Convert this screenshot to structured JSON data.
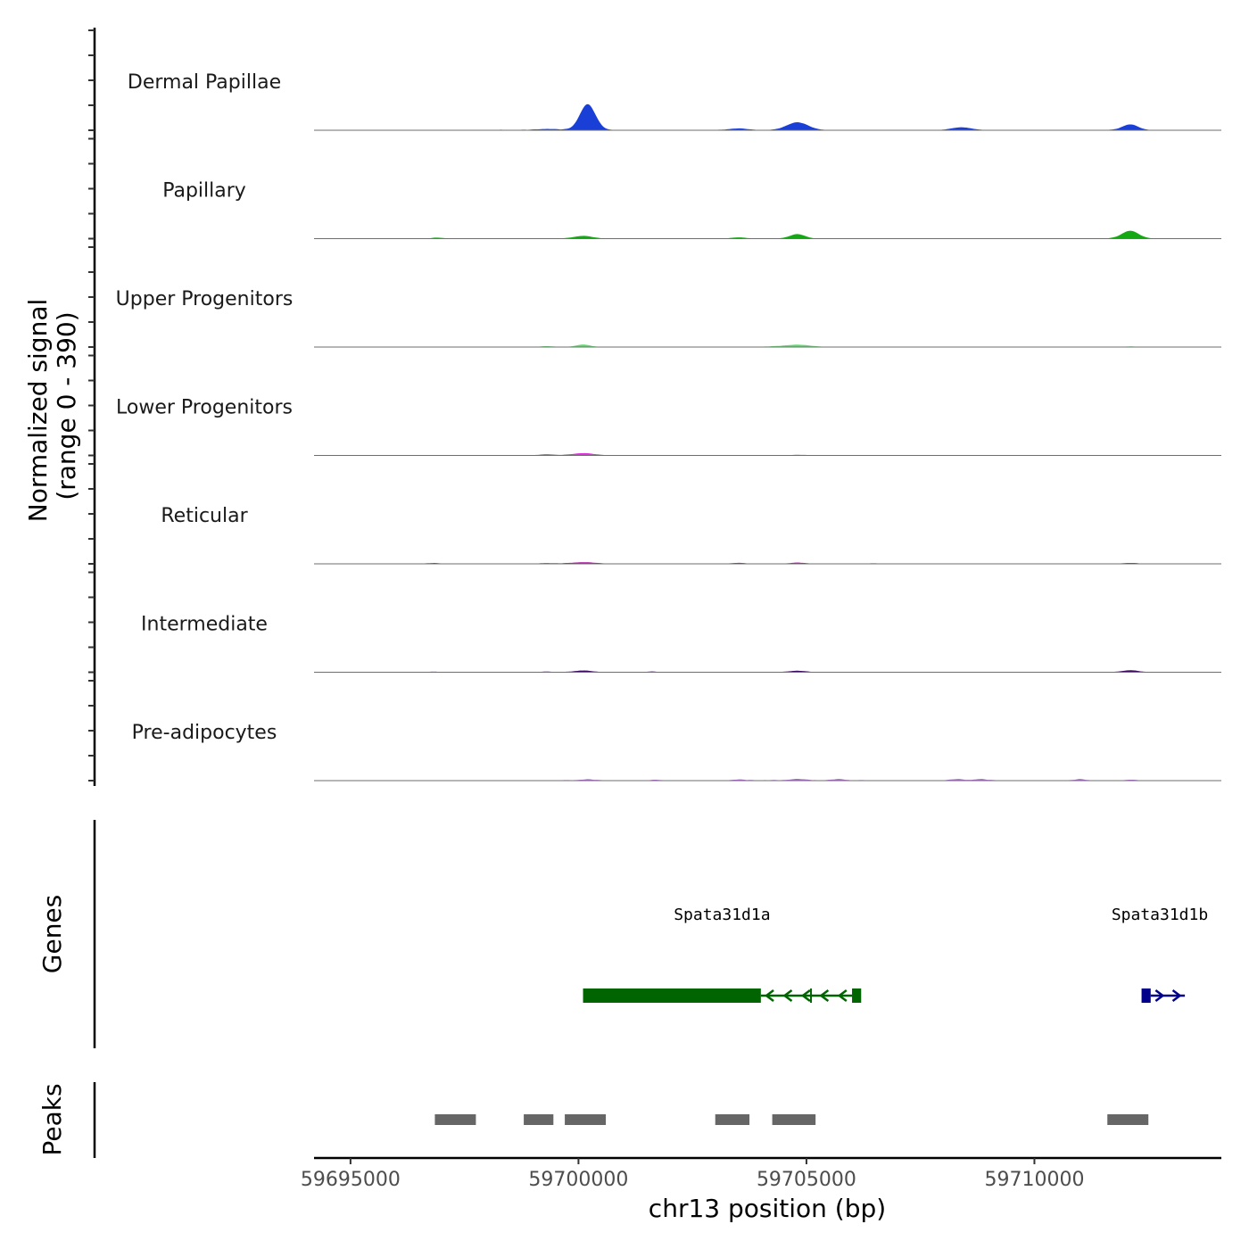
{
  "chart_data": {
    "type": "area",
    "chromosome": "chr13",
    "xlabel": "chr13 position (bp)",
    "ylabel_line1": "Normalized signal",
    "ylabel_line2": "(range 0 - 390)",
    "ylim": [
      0,
      390
    ],
    "xlim": [
      59694200,
      59714100
    ],
    "x_ticks": [
      59695000,
      59700000,
      59705000,
      59710000
    ],
    "x_tick_labels": [
      "59695000",
      "59700000",
      "59705000",
      "59710000"
    ],
    "tracks": [
      {
        "name": "Dermal Papillae",
        "color": "#1a3fd6",
        "baseline": [
          [
            59694800,
            0.4
          ],
          [
            59695200,
            1.2
          ],
          [
            59695800,
            1.0
          ],
          [
            59696400,
            1.3
          ],
          [
            59697100,
            1.1
          ],
          [
            59697600,
            0.8
          ],
          [
            59698600,
            2.5
          ],
          [
            59699200,
            1.6
          ],
          [
            59699700,
            3.0
          ],
          [
            59700000,
            1.8
          ],
          [
            59700500,
            2.2
          ],
          [
            59701100,
            0.7
          ],
          [
            59702000,
            0.6
          ],
          [
            59703300,
            1.6
          ],
          [
            59704100,
            1.3
          ],
          [
            59705600,
            1.4
          ],
          [
            59706400,
            1.0
          ],
          [
            59707400,
            0.9
          ],
          [
            59708600,
            0.6
          ],
          [
            59709600,
            1.0
          ],
          [
            59710600,
            1.4
          ],
          [
            59711500,
            1.8
          ],
          [
            59712400,
            1.1
          ],
          [
            59713300,
            0.5
          ]
        ],
        "peaks": [
          [
            59700200,
            100,
            170
          ],
          [
            59704800,
            30,
            230
          ],
          [
            59708400,
            11,
            220
          ],
          [
            59712100,
            22,
            170
          ],
          [
            59703500,
            6,
            200
          ],
          [
            59699300,
            4,
            200
          ]
        ]
      },
      {
        "name": "Papillary",
        "color": "#14a814",
        "baseline": [
          [
            59694800,
            0.2
          ],
          [
            59695800,
            0.6
          ],
          [
            59696800,
            1.2
          ],
          [
            59697600,
            0.6
          ],
          [
            59698600,
            1.0
          ],
          [
            59699600,
            1.4
          ],
          [
            59701000,
            0.8
          ],
          [
            59702000,
            0.6
          ],
          [
            59703000,
            0.8
          ],
          [
            59704000,
            1.4
          ],
          [
            59705600,
            0.6
          ],
          [
            59706600,
            0.6
          ],
          [
            59707800,
            0.8
          ],
          [
            59708600,
            0.6
          ],
          [
            59709600,
            0.7
          ],
          [
            59710600,
            0.6
          ],
          [
            59711600,
            1.5
          ],
          [
            59712600,
            1.0
          ],
          [
            59713300,
            0.4
          ]
        ],
        "peaks": [
          [
            59700100,
            10,
            190
          ],
          [
            59704800,
            17,
            160
          ],
          [
            59712100,
            30,
            180
          ],
          [
            59703500,
            4,
            150
          ],
          [
            59696900,
            3,
            120
          ]
        ]
      },
      {
        "name": "Upper Progenitors",
        "color": "#5ddc6c",
        "baseline": [
          [
            59694800,
            0.1
          ],
          [
            59698700,
            0.8
          ],
          [
            59699400,
            1.2
          ],
          [
            59700000,
            1.0
          ],
          [
            59701000,
            0.4
          ],
          [
            59703500,
            0.8
          ],
          [
            59704200,
            2.5
          ],
          [
            59705200,
            1.0
          ],
          [
            59706200,
            0.5
          ],
          [
            59708400,
            0.4
          ],
          [
            59710500,
            0.4
          ],
          [
            59711500,
            0.8
          ],
          [
            59712600,
            0.5
          ],
          [
            59713300,
            0.1
          ]
        ],
        "peaks": [
          [
            59700100,
            9,
            150
          ],
          [
            59704800,
            8,
            280
          ],
          [
            59699300,
            3,
            120
          ],
          [
            59712100,
            2,
            120
          ]
        ]
      },
      {
        "name": "Lower Progenitors",
        "color": "#e22fe0",
        "baseline": [
          [
            59694800,
            0.1
          ],
          [
            59695800,
            0.6
          ],
          [
            59696800,
            1.0
          ],
          [
            59697800,
            0.8
          ],
          [
            59698700,
            1.2
          ],
          [
            59699700,
            1.6
          ],
          [
            59700800,
            1.2
          ],
          [
            59701800,
            1.4
          ],
          [
            59702800,
            1.0
          ],
          [
            59703800,
            1.1
          ],
          [
            59704800,
            1.4
          ],
          [
            59705800,
            1.0
          ],
          [
            59706800,
            0.8
          ],
          [
            59707800,
            0.8
          ],
          [
            59708800,
            0.9
          ],
          [
            59709800,
            0.7
          ],
          [
            59710800,
            0.9
          ],
          [
            59711800,
            1.0
          ],
          [
            59712800,
            0.6
          ],
          [
            59713300,
            0.1
          ]
        ],
        "peaks": [
          [
            59700100,
            8,
            230
          ],
          [
            59699300,
            4,
            130
          ],
          [
            59704800,
            1.5,
            150
          ],
          [
            59706500,
            1,
            150
          ]
        ]
      },
      {
        "name": "Reticular",
        "color": "#a8149e",
        "baseline": [
          [
            59694800,
            0.1
          ],
          [
            59695800,
            0.9
          ],
          [
            59696700,
            1.6
          ],
          [
            59697500,
            1.0
          ],
          [
            59698700,
            1.3
          ],
          [
            59699700,
            1.8
          ],
          [
            59700800,
            1.6
          ],
          [
            59701800,
            1.0
          ],
          [
            59702800,
            0.9
          ],
          [
            59703800,
            1.0
          ],
          [
            59704800,
            1.2
          ],
          [
            59705800,
            1.0
          ],
          [
            59706800,
            0.8
          ],
          [
            59707800,
            1.0
          ],
          [
            59708800,
            0.8
          ],
          [
            59709800,
            1.0
          ],
          [
            59710800,
            1.0
          ],
          [
            59711800,
            1.2
          ],
          [
            59712800,
            0.8
          ],
          [
            59713300,
            0.2
          ]
        ],
        "peaks": [
          [
            59700100,
            5,
            250
          ],
          [
            59703500,
            3,
            150
          ],
          [
            59704800,
            4,
            150
          ],
          [
            59712100,
            3,
            150
          ],
          [
            59696800,
            2,
            150
          ],
          [
            59699300,
            2,
            150
          ],
          [
            59706500,
            1.5,
            150
          ]
        ]
      },
      {
        "name": "Intermediate",
        "color": "#3a0b5e",
        "baseline": [
          [
            59694800,
            0.1
          ],
          [
            59695800,
            0.7
          ],
          [
            59696800,
            1.0
          ],
          [
            59697800,
            0.8
          ],
          [
            59698800,
            1.0
          ],
          [
            59699800,
            1.3
          ],
          [
            59700800,
            1.0
          ],
          [
            59701800,
            1.0
          ],
          [
            59702800,
            0.8
          ],
          [
            59703800,
            0.9
          ],
          [
            59704800,
            1.1
          ],
          [
            59705800,
            0.8
          ],
          [
            59706800,
            0.8
          ],
          [
            59707800,
            0.8
          ],
          [
            59708800,
            0.7
          ],
          [
            59709800,
            0.8
          ],
          [
            59710800,
            0.9
          ],
          [
            59711800,
            1.2
          ],
          [
            59712800,
            0.8
          ],
          [
            59713300,
            0.1
          ]
        ],
        "peaks": [
          [
            59700100,
            6,
            180
          ],
          [
            59704800,
            5,
            180
          ],
          [
            59712100,
            7,
            170
          ],
          [
            59701600,
            2,
            100
          ],
          [
            59699300,
            2,
            100
          ],
          [
            59696800,
            1.5,
            120
          ]
        ]
      },
      {
        "name": "Pre-adipocytes",
        "color": "#b85ee8",
        "baseline": [
          [
            59694800,
            0.2
          ],
          [
            59695100,
            1.6
          ],
          [
            59695800,
            1.8
          ],
          [
            59696400,
            1.2
          ],
          [
            59696800,
            1.8
          ],
          [
            59697800,
            0.6
          ],
          [
            59698700,
            1.4
          ],
          [
            59699300,
            1.6
          ],
          [
            59700000,
            3.0
          ],
          [
            59700800,
            2.0
          ],
          [
            59701800,
            1.6
          ],
          [
            59702800,
            1.6
          ],
          [
            59703700,
            2.8
          ],
          [
            59704500,
            2.4
          ],
          [
            59705200,
            2.6
          ],
          [
            59706000,
            2.8
          ],
          [
            59706800,
            1.2
          ],
          [
            59707600,
            1.6
          ],
          [
            59708300,
            2.6
          ],
          [
            59708900,
            3.0
          ],
          [
            59709800,
            0.8
          ],
          [
            59711000,
            2.4
          ],
          [
            59711600,
            1.8
          ],
          [
            59712300,
            1.8
          ],
          [
            59713200,
            1.2
          ]
        ],
        "peaks": [
          [
            59704800,
            5,
            150
          ],
          [
            59705700,
            4,
            120
          ],
          [
            59708300,
            4,
            130
          ],
          [
            59708800,
            4,
            120
          ],
          [
            59711000,
            4,
            100
          ],
          [
            59700200,
            3,
            130
          ],
          [
            59703500,
            2.5,
            120
          ],
          [
            59701700,
            2,
            100
          ],
          [
            59712100,
            2.5,
            100
          ]
        ]
      }
    ],
    "genes": [
      {
        "name": "Spata31d1a",
        "color": "#006400",
        "strand": "-",
        "start": 59700100,
        "end": 59706200,
        "thick": [
          [
            59700100,
            59704000
          ],
          [
            59706000,
            59706200
          ]
        ],
        "introns": [
          [
            59704000,
            59706000
          ]
        ],
        "exon_marks": [
          59705100
        ]
      },
      {
        "name": "Spata31d1b",
        "color": "#00008b",
        "strand": "+",
        "start": 59712200,
        "end": 59713300,
        "thick": [
          [
            59712350,
            59712550
          ]
        ],
        "introns": [
          [
            59712550,
            59713300
          ]
        ],
        "exon_marks": []
      }
    ],
    "genes_label": "Genes",
    "peaks_label": "Peaks",
    "peaks_color": "#666666",
    "peak_regions": [
      [
        59696850,
        59697750
      ],
      [
        59698800,
        59699450
      ],
      [
        59699700,
        59700600
      ],
      [
        59703000,
        59703750
      ],
      [
        59704250,
        59705200
      ],
      [
        59711600,
        59712500
      ]
    ]
  }
}
